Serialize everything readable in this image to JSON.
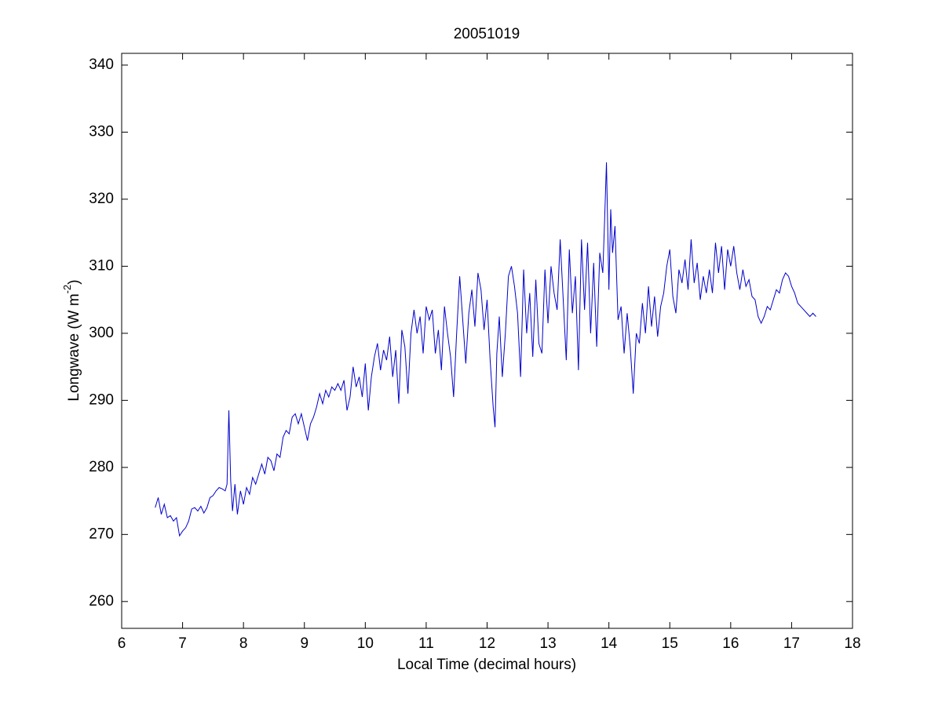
{
  "chart_data": {
    "type": "line",
    "title": "20051019",
    "x_label": "Local Time (decimal hours)",
    "y_label": [
      "Longwave (W m",
      "-2",
      ")"
    ],
    "xlim": [
      6,
      18
    ],
    "xticks": [
      6,
      7,
      8,
      9,
      10,
      11,
      12,
      13,
      14,
      15,
      16,
      17,
      18
    ],
    "ylim": [
      256,
      341.75
    ],
    "yticks": [
      260,
      270,
      280,
      290,
      300,
      310,
      320,
      330,
      340
    ],
    "grid": false,
    "series": [
      {
        "color": "#0000cc",
        "x": [
          6.55,
          6.6,
          6.65,
          6.7,
          6.75,
          6.8,
          6.85,
          6.9,
          6.95,
          7.0,
          7.05,
          7.1,
          7.15,
          7.2,
          7.25,
          7.3,
          7.35,
          7.4,
          7.45,
          7.5,
          7.55,
          7.6,
          7.65,
          7.7,
          7.73,
          7.76,
          7.79,
          7.82,
          7.86,
          7.9,
          7.95,
          8.0,
          8.05,
          8.1,
          8.15,
          8.2,
          8.25,
          8.3,
          8.35,
          8.4,
          8.45,
          8.5,
          8.55,
          8.6,
          8.65,
          8.7,
          8.75,
          8.8,
          8.85,
          8.9,
          8.95,
          9.0,
          9.05,
          9.1,
          9.15,
          9.2,
          9.25,
          9.3,
          9.35,
          9.4,
          9.45,
          9.5,
          9.55,
          9.6,
          9.65,
          9.7,
          9.75,
          9.8,
          9.85,
          9.9,
          9.95,
          10.0,
          10.05,
          10.1,
          10.15,
          10.2,
          10.25,
          10.3,
          10.35,
          10.4,
          10.45,
          10.5,
          10.55,
          10.6,
          10.65,
          10.7,
          10.75,
          10.8,
          10.85,
          10.9,
          10.95,
          11.0,
          11.05,
          11.1,
          11.15,
          11.2,
          11.25,
          11.3,
          11.35,
          11.4,
          11.45,
          11.5,
          11.55,
          11.6,
          11.65,
          11.7,
          11.75,
          11.8,
          11.85,
          11.9,
          11.95,
          12.0,
          12.05,
          12.1,
          12.13,
          12.16,
          12.2,
          12.25,
          12.3,
          12.35,
          12.4,
          12.45,
          12.5,
          12.55,
          12.6,
          12.65,
          12.7,
          12.75,
          12.8,
          12.85,
          12.9,
          12.95,
          13.0,
          13.05,
          13.1,
          13.15,
          13.2,
          13.25,
          13.3,
          13.35,
          13.4,
          13.45,
          13.5,
          13.55,
          13.6,
          13.65,
          13.7,
          13.75,
          13.8,
          13.85,
          13.9,
          13.93,
          13.96,
          14.0,
          14.03,
          14.06,
          14.1,
          14.15,
          14.2,
          14.25,
          14.3,
          14.35,
          14.4,
          14.45,
          14.5,
          14.55,
          14.6,
          14.65,
          14.7,
          14.75,
          14.8,
          14.85,
          14.9,
          14.95,
          15.0,
          15.05,
          15.1,
          15.15,
          15.2,
          15.25,
          15.3,
          15.35,
          15.4,
          15.45,
          15.5,
          15.55,
          15.6,
          15.65,
          15.7,
          15.75,
          15.8,
          15.85,
          15.9,
          15.95,
          16.0,
          16.05,
          16.1,
          16.15,
          16.2,
          16.25,
          16.3,
          16.35,
          16.4,
          16.45,
          16.5,
          16.55,
          16.6,
          16.65,
          16.7,
          16.75,
          16.8,
          16.85,
          16.9,
          16.95,
          17.0,
          17.05,
          17.1,
          17.15,
          17.2,
          17.25,
          17.3,
          17.35,
          17.4
        ],
        "values": [
          274,
          275.5,
          273,
          274.5,
          272.5,
          272.8,
          272,
          272.5,
          269.8,
          270.5,
          271,
          272,
          273.8,
          274,
          273.5,
          274.2,
          273.2,
          274,
          275.5,
          275.8,
          276.5,
          277,
          276.8,
          276.5,
          277.5,
          288.5,
          278,
          273.5,
          277.5,
          273,
          276.5,
          274.5,
          277,
          276,
          278.5,
          277.5,
          279,
          280.5,
          279,
          281.5,
          281,
          279.5,
          282,
          281.5,
          284.5,
          285.5,
          285,
          287.5,
          288,
          286.5,
          288,
          286,
          284,
          286.5,
          287.5,
          289,
          291,
          289.5,
          291.5,
          290.5,
          292,
          291.5,
          292.5,
          291.5,
          293,
          288.5,
          290.5,
          295,
          292,
          293.5,
          290.5,
          295.5,
          288.5,
          293.5,
          296.5,
          298.5,
          294.5,
          297.5,
          296,
          299.5,
          293.5,
          297.5,
          289.5,
          300.5,
          298,
          291,
          300,
          303.5,
          300,
          302.5,
          297,
          304,
          302,
          303.5,
          297,
          300.5,
          294.5,
          304,
          300,
          296.5,
          290.5,
          300,
          308.5,
          302,
          295.5,
          303,
          306.5,
          301,
          309,
          306.5,
          300.5,
          305,
          296,
          289,
          286,
          297,
          302.5,
          293.5,
          300,
          308.5,
          310,
          307,
          303,
          293.5,
          309.5,
          300,
          306,
          296.5,
          308,
          298.5,
          297,
          309.5,
          301.5,
          310,
          306,
          303.5,
          314,
          305,
          296,
          312.5,
          303,
          308.5,
          294.5,
          314,
          303.5,
          313.5,
          300,
          310.5,
          298,
          312,
          309,
          317,
          325.5,
          306.5,
          318.5,
          312,
          316,
          302,
          304,
          297,
          303,
          298,
          291,
          300,
          298.5,
          304.5,
          300,
          307,
          301,
          305.5,
          299.5,
          304,
          306,
          310,
          312.5,
          305.5,
          303,
          309.5,
          307.5,
          311,
          306.5,
          314,
          307.5,
          310.5,
          305,
          308.5,
          306,
          309.5,
          306,
          313.5,
          309,
          313,
          306.5,
          312.5,
          310,
          313,
          309,
          306.5,
          309.5,
          307,
          308,
          305.5,
          305,
          302.5,
          301.5,
          302.5,
          304,
          303.5,
          305,
          306.5,
          306,
          308,
          309,
          308.5,
          307,
          306,
          304.5,
          304,
          303.5,
          303,
          302.5,
          303,
          302.5
        ]
      }
    ]
  }
}
